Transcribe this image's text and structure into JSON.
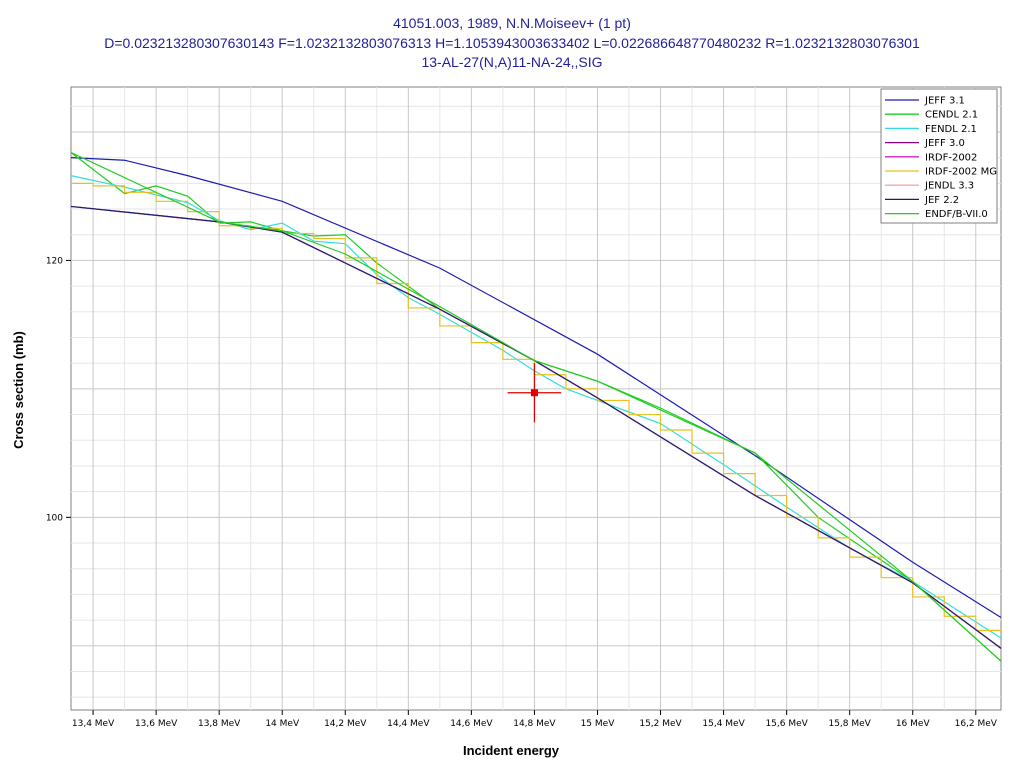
{
  "chart_data": {
    "type": "line",
    "title": "41051.003, 1989, N.N.Moiseev+ (1 pt)",
    "subtitle": "D=0.023213280307630143 F=1.0232132803076313 H=1.1053943003633402 L=0.022686648770480232 R=1.0232132803076301",
    "reaction": "13-AL-27(N,A)11-NA-24,,SIG",
    "xlabel": "Incident energy",
    "ylabel": "Cross section (mb)",
    "xlim": [
      13.33,
      16.28
    ],
    "ylim": [
      85,
      133.5
    ],
    "grid": true,
    "legend_position": "top-right",
    "x_ticks": [
      {
        "value": 13.4,
        "label": "13,4 MeV"
      },
      {
        "value": 13.6,
        "label": "13,6 MeV"
      },
      {
        "value": 13.8,
        "label": "13,8 MeV"
      },
      {
        "value": 14.0,
        "label": "14 MeV"
      },
      {
        "value": 14.2,
        "label": "14,2 MeV"
      },
      {
        "value": 14.4,
        "label": "14,4 MeV"
      },
      {
        "value": 14.6,
        "label": "14,6 MeV"
      },
      {
        "value": 14.8,
        "label": "14,8 MeV"
      },
      {
        "value": 15.0,
        "label": "15 MeV"
      },
      {
        "value": 15.2,
        "label": "15,2 MeV"
      },
      {
        "value": 15.4,
        "label": "15,4 MeV"
      },
      {
        "value": 15.6,
        "label": "15,6 MeV"
      },
      {
        "value": 15.8,
        "label": "15,8 MeV"
      },
      {
        "value": 16.0,
        "label": "16 MeV"
      },
      {
        "value": 16.2,
        "label": "16,2 MeV"
      }
    ],
    "y_ticks": [
      {
        "value": 100,
        "label": "100"
      },
      {
        "value": 120,
        "label": "120"
      }
    ],
    "series": [
      {
        "name": "JEFF 3.1",
        "color": "#1c1cb0",
        "step": false,
        "x": [
          13.33,
          13.5,
          13.7,
          14.0,
          14.5,
          15.0,
          15.5,
          16.0,
          16.28
        ],
        "y": [
          128.0,
          127.8,
          126.6,
          124.6,
          119.4,
          112.7,
          104.8,
          96.5,
          92.2
        ]
      },
      {
        "name": "CENDL 2.1",
        "color": "#22cc22",
        "step": false,
        "x": [
          13.33,
          13.5,
          13.6,
          13.7,
          13.8,
          13.9,
          14.0,
          14.1,
          14.2,
          14.3,
          14.5,
          14.8,
          15.0,
          15.2,
          15.5,
          15.7,
          16.0,
          16.28
        ],
        "y": [
          128.4,
          125.2,
          125.8,
          125.0,
          122.9,
          123.0,
          122.3,
          121.9,
          122.0,
          119.8,
          116.2,
          112.2,
          110.6,
          108.5,
          105.0,
          100.0,
          95.0,
          88.8
        ]
      },
      {
        "name": "FENDL 2.1",
        "color": "#33dddd",
        "step": false,
        "x": [
          13.33,
          13.5,
          13.7,
          13.8,
          13.9,
          14.0,
          14.1,
          14.2,
          14.3,
          14.4,
          14.5,
          14.6,
          14.7,
          14.8,
          14.9,
          15.0,
          15.2,
          15.4,
          15.6,
          15.8,
          16.0,
          16.28
        ],
        "y": [
          126.6,
          125.7,
          124.5,
          123.1,
          122.4,
          122.9,
          121.5,
          121.3,
          118.9,
          117.1,
          115.8,
          114.4,
          113.0,
          111.4,
          110.0,
          109.1,
          107.3,
          104.1,
          100.8,
          97.6,
          95.0,
          90.6
        ]
      },
      {
        "name": "JEFF 3.0",
        "color": "#880088",
        "step": false,
        "x": [
          13.33,
          13.8,
          14.0,
          14.2,
          14.5,
          14.8,
          15.0,
          15.5,
          16.0,
          16.28
        ],
        "y": [
          124.2,
          123.0,
          122.2,
          119.8,
          116.2,
          112.2,
          109.3,
          101.7,
          94.9,
          89.8
        ]
      },
      {
        "name": "IRDF-2002",
        "color": "#cc22cc",
        "step": false,
        "x": [
          13.33,
          13.8,
          14.0,
          14.2,
          14.5,
          14.8,
          15.0,
          15.5,
          16.0,
          16.28
        ],
        "y": [
          124.2,
          123.0,
          122.2,
          119.8,
          116.2,
          112.2,
          109.3,
          101.7,
          94.9,
          89.8
        ]
      },
      {
        "name": "IRDF-2002 MG",
        "color": "#e8c020",
        "step": true,
        "x": [
          13.33,
          13.4,
          13.5,
          13.6,
          13.7,
          13.8,
          13.9,
          14.0,
          14.1,
          14.2,
          14.3,
          14.4,
          14.5,
          14.6,
          14.7,
          14.8,
          14.9,
          15.0,
          15.1,
          15.2,
          15.3,
          15.4,
          15.5,
          15.6,
          15.7,
          15.8,
          15.9,
          16.0,
          16.1,
          16.2,
          16.28
        ],
        "y": [
          126.0,
          125.8,
          125.3,
          124.6,
          123.8,
          122.7,
          122.5,
          122.1,
          121.7,
          120.2,
          118.2,
          116.3,
          114.9,
          113.6,
          112.3,
          111.1,
          110.0,
          109.1,
          108.0,
          106.8,
          105.0,
          103.4,
          101.7,
          100.0,
          98.4,
          96.9,
          95.3,
          93.8,
          92.3,
          91.2,
          91.2
        ]
      },
      {
        "name": "JENDL 3.3",
        "color": "#f0a8a8",
        "step": false,
        "x": [
          13.33,
          13.8,
          14.0,
          14.2,
          14.5,
          14.8,
          15.0,
          15.5,
          16.0,
          16.28
        ],
        "y": [
          124.2,
          123.0,
          122.2,
          119.8,
          116.2,
          112.2,
          109.3,
          101.7,
          94.9,
          89.8
        ]
      },
      {
        "name": "JEF 2.2",
        "color": "#1c1c70",
        "step": false,
        "x": [
          13.33,
          13.8,
          14.0,
          14.2,
          14.5,
          14.8,
          15.0,
          15.5,
          16.0,
          16.28
        ],
        "y": [
          124.2,
          123.0,
          122.2,
          119.8,
          116.2,
          112.2,
          109.3,
          101.7,
          94.9,
          89.8
        ]
      },
      {
        "name": "ENDF/B-VII.0",
        "color": "#22cc22",
        "step": false,
        "x": [
          13.33,
          13.8,
          14.0,
          14.2,
          14.5,
          14.8,
          15.0,
          15.5,
          16.0,
          16.28
        ],
        "y": [
          128.4,
          123.0,
          122.3,
          120.5,
          116.4,
          112.2,
          110.6,
          105.0,
          95.0,
          88.8
        ]
      }
    ],
    "points": [
      {
        "x": 14.8,
        "y": 109.7,
        "x_err": 0.085,
        "y_err": 2.3,
        "color": "#dd0000"
      }
    ]
  }
}
